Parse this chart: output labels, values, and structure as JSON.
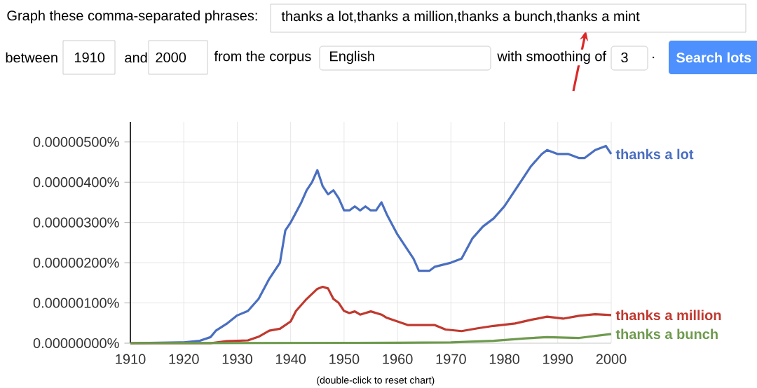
{
  "chart_data": {
    "type": "line",
    "annotations": [
      "Graph these comma-separated phrases:",
      "thanks a lot,thanks a million,thanks a bunch,thanks a mint",
      "between",
      "1910",
      "and",
      "2000",
      "from the corpus",
      "English",
      "with smoothing of",
      "3",
      ".",
      "Search lots",
      "(double-click to reset chart)"
    ],
    "xlim": [
      1910,
      2000
    ],
    "xticks": [
      1910,
      1920,
      1930,
      1940,
      1950,
      1960,
      1970,
      1980,
      1990,
      2000
    ],
    "ylim": [
      0,
      5.5e-06
    ],
    "yticks": [
      {
        "value": 0,
        "label": "0.00000000%"
      },
      {
        "value": 1e-06,
        "label": "0.00000100%"
      },
      {
        "value": 2e-06,
        "label": "0.00000200%"
      },
      {
        "value": 3e-06,
        "label": "0.00000300%"
      },
      {
        "value": 4e-06,
        "label": "0.00000400%"
      },
      {
        "value": 5e-06,
        "label": "0.00000500%"
      }
    ],
    "grid": true,
    "series": [
      {
        "name": "thanks a lot",
        "color": "#4a6fc0",
        "x": [
          1910,
          1920,
          1923,
          1925,
          1926,
          1928,
          1930,
          1932,
          1934,
          1936,
          1938,
          1939,
          1940,
          1942,
          1943,
          1944,
          1945,
          1946,
          1947,
          1948,
          1949,
          1950,
          1951,
          1952,
          1953,
          1954,
          1955,
          1956,
          1957,
          1958,
          1960,
          1962,
          1963,
          1964,
          1966,
          1967,
          1970,
          1972,
          1974,
          1976,
          1978,
          1980,
          1982,
          1984,
          1985,
          1987,
          1988,
          1990,
          1992,
          1994,
          1995,
          1997,
          1999,
          2000
        ],
        "values": [
          0,
          2e-08,
          6e-08,
          1.5e-07,
          3.1e-07,
          4.8e-07,
          6.9e-07,
          8e-07,
          1.1e-06,
          1.6e-06,
          2e-06,
          2.8e-06,
          3e-06,
          3.5e-06,
          3.8e-06,
          4e-06,
          4.3e-06,
          3.9e-06,
          3.7e-06,
          3.8e-06,
          3.6e-06,
          3.3e-06,
          3.3e-06,
          3.4e-06,
          3.3e-06,
          3.4e-06,
          3.3e-06,
          3.3e-06,
          3.5e-06,
          3.2e-06,
          2.7e-06,
          2.3e-06,
          2.1e-06,
          1.8e-06,
          1.8e-06,
          1.9e-06,
          2e-06,
          2.1e-06,
          2.6e-06,
          2.9e-06,
          3.1e-06,
          3.4e-06,
          3.8e-06,
          4.2e-06,
          4.4e-06,
          4.7e-06,
          4.8e-06,
          4.7e-06,
          4.7e-06,
          4.6e-06,
          4.6e-06,
          4.8e-06,
          4.9e-06,
          4.7e-06
        ]
      },
      {
        "name": "thanks a million",
        "color": "#c0392f",
        "x": [
          1910,
          1925,
          1928,
          1932,
          1934,
          1936,
          1938,
          1940,
          1941,
          1943,
          1945,
          1946,
          1947,
          1948,
          1949,
          1950,
          1951,
          1952,
          1953,
          1955,
          1957,
          1958,
          1960,
          1962,
          1965,
          1967,
          1969,
          1972,
          1975,
          1978,
          1982,
          1985,
          1988,
          1991,
          1994,
          1997,
          2000
        ],
        "values": [
          0,
          0,
          5e-08,
          7e-08,
          1.6e-07,
          3.1e-07,
          3.6e-07,
          5.4e-07,
          8e-07,
          1.1e-06,
          1.35e-06,
          1.4e-06,
          1.36e-06,
          1.1e-06,
          1e-06,
          8e-07,
          7.5e-07,
          7.9e-07,
          7.1e-07,
          7.9e-07,
          7.1e-07,
          6.3e-07,
          5.4e-07,
          4.5e-07,
          4.5e-07,
          4.5e-07,
          3.4e-07,
          3e-07,
          3.7e-07,
          4.3e-07,
          4.9e-07,
          5.8e-07,
          6.6e-07,
          6.1e-07,
          6.8e-07,
          7.2e-07,
          7e-07
        ]
      },
      {
        "name": "thanks a bunch",
        "color": "#6e9a4e",
        "x": [
          1910,
          1960,
          1970,
          1978,
          1984,
          1988,
          1994,
          2000
        ],
        "values": [
          0,
          1e-08,
          2e-08,
          6e-08,
          1.2e-07,
          1.5e-07,
          1.3e-07,
          2.3e-07
        ]
      }
    ]
  }
}
